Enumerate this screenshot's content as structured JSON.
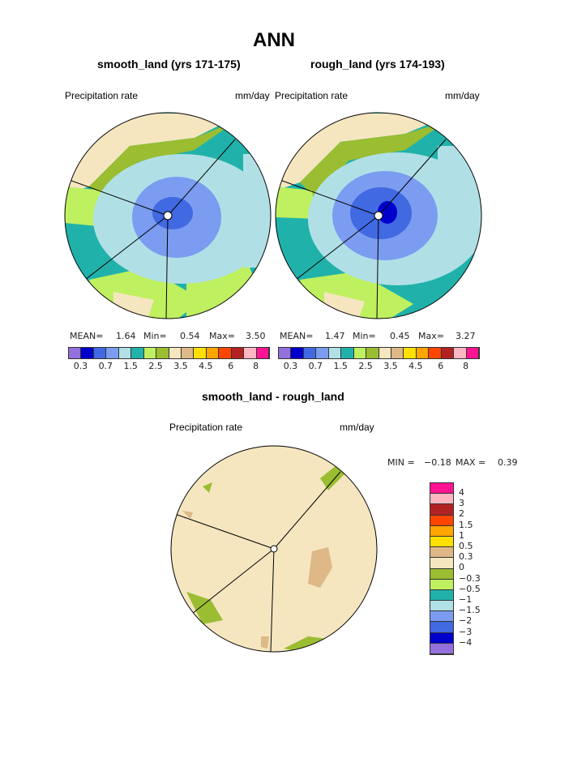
{
  "title": "ANN",
  "panels": [
    {
      "subtitle": "smooth_land (yrs 171-175)",
      "variable": "Precipitation rate",
      "units": "mm/day",
      "stats": {
        "mean_label": "MEAN=",
        "mean": "1.64",
        "min_label": "Min=",
        "min": "0.54",
        "max_label": "Max=",
        "max": "3.50"
      }
    },
    {
      "subtitle": "rough_land (yrs 174-193)",
      "variable": "Precipitation rate",
      "units": "mm/day",
      "stats": {
        "mean_label": "MEAN=",
        "mean": "1.47",
        "min_label": "Min=",
        "min": "0.45",
        "max_label": "Max=",
        "max": "3.27"
      }
    }
  ],
  "colorbar": {
    "colors": [
      "#9370db",
      "#0000cd",
      "#4169e1",
      "#7b9cf0",
      "#b0e0e6",
      "#20b2aa",
      "#bff060",
      "#9abd32",
      "#f5e6c0",
      "#deb887",
      "#ffe000",
      "#ffa500",
      "#ff4500",
      "#b22222",
      "#ffb6c1",
      "#ff1493"
    ],
    "labels": [
      "0.3",
      "0.7",
      "1.5",
      "2.5",
      "3.5",
      "4.5",
      "6",
      "8"
    ]
  },
  "diff": {
    "subtitle": "smooth_land - rough_land",
    "variable": "Precipitation rate",
    "units": "mm/day",
    "min_label": "MIN =",
    "min": "−0.18",
    "max_label": "MAX =",
    "max": "0.39",
    "colorbar_labels": [
      "4",
      "3",
      "2",
      "1.5",
      "1",
      "0.5",
      "0.3",
      "0",
      "−0.3",
      "−0.5",
      "−1",
      "−1.5",
      "−2",
      "−3",
      "−4"
    ]
  }
}
